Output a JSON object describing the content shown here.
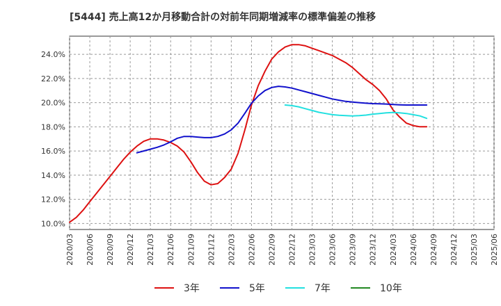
{
  "chart_data": {
    "type": "line",
    "title": "[5444]  売上高12か月移動合計の対前年同期増減率の標準偏差の推移",
    "xlabel": "",
    "ylabel": "",
    "ylim": [
      9.5,
      25.5
    ],
    "yticks": [
      10.0,
      12.0,
      14.0,
      16.0,
      18.0,
      20.0,
      22.0,
      24.0
    ],
    "ytick_labels": [
      "10.0%",
      "12.0%",
      "14.0%",
      "16.0%",
      "18.0%",
      "20.0%",
      "22.0%",
      "24.0%"
    ],
    "xticks": [
      "2020/03",
      "2020/06",
      "2020/09",
      "2020/12",
      "2021/03",
      "2021/06",
      "2021/09",
      "2021/12",
      "2022/03",
      "2022/06",
      "2022/09",
      "2022/12",
      "2023/03",
      "2023/06",
      "2023/09",
      "2023/12",
      "2024/03",
      "2024/06",
      "2024/09",
      "2024/12",
      "2025/03",
      "2025/06"
    ],
    "grid": true,
    "legend_position": "bottom",
    "series": [
      {
        "name": "3年",
        "color": "#dd1111",
        "points": [
          [
            "2020/03",
            10.1
          ],
          [
            "2020/04",
            10.5
          ],
          [
            "2020/05",
            11.1
          ],
          [
            "2020/06",
            11.8
          ],
          [
            "2020/07",
            12.5
          ],
          [
            "2020/08",
            13.2
          ],
          [
            "2020/09",
            13.9
          ],
          [
            "2020/10",
            14.6
          ],
          [
            "2020/11",
            15.3
          ],
          [
            "2020/12",
            15.9
          ],
          [
            "2021/01",
            16.4
          ],
          [
            "2021/02",
            16.8
          ],
          [
            "2021/03",
            17.0
          ],
          [
            "2021/04",
            17.0
          ],
          [
            "2021/05",
            16.9
          ],
          [
            "2021/06",
            16.7
          ],
          [
            "2021/07",
            16.4
          ],
          [
            "2021/08",
            15.9
          ],
          [
            "2021/09",
            15.1
          ],
          [
            "2021/10",
            14.2
          ],
          [
            "2021/11",
            13.5
          ],
          [
            "2021/12",
            13.2
          ],
          [
            "2022/01",
            13.3
          ],
          [
            "2022/02",
            13.8
          ],
          [
            "2022/03",
            14.5
          ],
          [
            "2022/04",
            15.8
          ],
          [
            "2022/05",
            17.7
          ],
          [
            "2022/06",
            19.8
          ],
          [
            "2022/07",
            21.4
          ],
          [
            "2022/08",
            22.6
          ],
          [
            "2022/09",
            23.6
          ],
          [
            "2022/10",
            24.2
          ],
          [
            "2022/11",
            24.6
          ],
          [
            "2022/12",
            24.8
          ],
          [
            "2023/01",
            24.8
          ],
          [
            "2023/02",
            24.7
          ],
          [
            "2023/03",
            24.5
          ],
          [
            "2023/04",
            24.3
          ],
          [
            "2023/05",
            24.1
          ],
          [
            "2023/06",
            23.9
          ],
          [
            "2023/07",
            23.6
          ],
          [
            "2023/08",
            23.3
          ],
          [
            "2023/09",
            22.9
          ],
          [
            "2023/10",
            22.4
          ],
          [
            "2023/11",
            21.9
          ],
          [
            "2023/12",
            21.5
          ],
          [
            "2024/01",
            21.0
          ],
          [
            "2024/02",
            20.3
          ],
          [
            "2024/03",
            19.4
          ],
          [
            "2024/04",
            18.8
          ],
          [
            "2024/05",
            18.3
          ],
          [
            "2024/06",
            18.1
          ],
          [
            "2024/07",
            18.0
          ],
          [
            "2024/08",
            18.0
          ]
        ]
      },
      {
        "name": "5年",
        "color": "#1111cc",
        "points": [
          [
            "2021/01",
            15.85
          ],
          [
            "2021/02",
            16.0
          ],
          [
            "2021/03",
            16.15
          ],
          [
            "2021/04",
            16.3
          ],
          [
            "2021/05",
            16.5
          ],
          [
            "2021/06",
            16.75
          ],
          [
            "2021/07",
            17.05
          ],
          [
            "2021/08",
            17.2
          ],
          [
            "2021/09",
            17.2
          ],
          [
            "2021/10",
            17.15
          ],
          [
            "2021/11",
            17.1
          ],
          [
            "2021/12",
            17.1
          ],
          [
            "2022/01",
            17.2
          ],
          [
            "2022/02",
            17.4
          ],
          [
            "2022/03",
            17.75
          ],
          [
            "2022/04",
            18.3
          ],
          [
            "2022/05",
            19.1
          ],
          [
            "2022/06",
            19.95
          ],
          [
            "2022/07",
            20.55
          ],
          [
            "2022/08",
            21.0
          ],
          [
            "2022/09",
            21.25
          ],
          [
            "2022/10",
            21.35
          ],
          [
            "2022/11",
            21.3
          ],
          [
            "2022/12",
            21.2
          ],
          [
            "2023/01",
            21.05
          ],
          [
            "2023/02",
            20.9
          ],
          [
            "2023/03",
            20.75
          ],
          [
            "2023/04",
            20.6
          ],
          [
            "2023/05",
            20.45
          ],
          [
            "2023/06",
            20.3
          ],
          [
            "2023/07",
            20.2
          ],
          [
            "2023/08",
            20.1
          ],
          [
            "2023/09",
            20.05
          ],
          [
            "2023/10",
            20.0
          ],
          [
            "2023/11",
            19.95
          ],
          [
            "2023/12",
            19.92
          ],
          [
            "2024/01",
            19.9
          ],
          [
            "2024/02",
            19.88
          ],
          [
            "2024/03",
            19.85
          ],
          [
            "2024/04",
            19.82
          ],
          [
            "2024/05",
            19.8
          ],
          [
            "2024/06",
            19.8
          ],
          [
            "2024/07",
            19.8
          ],
          [
            "2024/08",
            19.8
          ]
        ]
      },
      {
        "name": "7年",
        "color": "#22e0e0",
        "points": [
          [
            "2022/11",
            19.8
          ],
          [
            "2022/12",
            19.75
          ],
          [
            "2023/01",
            19.65
          ],
          [
            "2023/02",
            19.5
          ],
          [
            "2023/03",
            19.35
          ],
          [
            "2023/04",
            19.2
          ],
          [
            "2023/05",
            19.1
          ],
          [
            "2023/06",
            19.0
          ],
          [
            "2023/07",
            18.95
          ],
          [
            "2023/08",
            18.92
          ],
          [
            "2023/09",
            18.9
          ],
          [
            "2023/10",
            18.92
          ],
          [
            "2023/11",
            18.97
          ],
          [
            "2023/12",
            19.05
          ],
          [
            "2024/01",
            19.1
          ],
          [
            "2024/02",
            19.15
          ],
          [
            "2024/03",
            19.18
          ],
          [
            "2024/04",
            19.15
          ],
          [
            "2024/05",
            19.1
          ],
          [
            "2024/06",
            19.0
          ],
          [
            "2024/07",
            18.9
          ],
          [
            "2024/08",
            18.7
          ]
        ]
      },
      {
        "name": "10年",
        "color": "#228822",
        "points": []
      }
    ]
  }
}
